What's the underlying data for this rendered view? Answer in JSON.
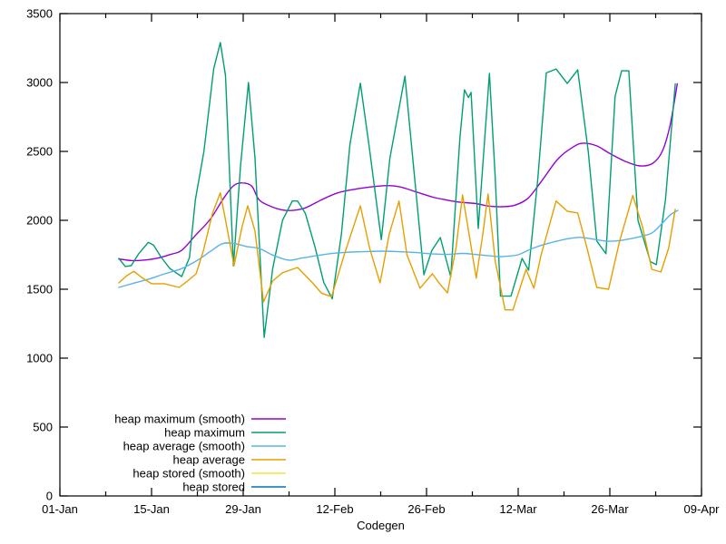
{
  "chart_data": {
    "type": "line",
    "title": "",
    "xlabel": "Codegen",
    "ylabel": "",
    "background": "#ffffff",
    "border_visible": true,
    "grid": false,
    "legend": {
      "position": "bottom-left-inside",
      "sample_side": "right"
    },
    "x_axis": {
      "unit": "days since 01-Jan",
      "range_days": [
        0,
        98
      ],
      "major_tick_days": [
        0,
        14,
        28,
        42,
        56,
        70,
        84,
        98
      ],
      "minor_tick_days": [
        7,
        21,
        35,
        49,
        63,
        77,
        91
      ],
      "tick_labels": [
        "01-Jan",
        "15-Jan",
        "29-Jan",
        "12-Feb",
        "26-Feb",
        "12-Mar",
        "26-Mar",
        "09-Apr"
      ]
    },
    "y_axis": {
      "range": [
        0,
        3500
      ],
      "ticks": [
        0,
        500,
        1000,
        1500,
        2000,
        2500,
        3000,
        3500
      ],
      "tick_labels": [
        "0",
        "500",
        "1000",
        "1500",
        "2000",
        "2500",
        "3000",
        "3500"
      ]
    },
    "series": [
      {
        "name": "heap maximum (smooth)",
        "color": "#9400d3",
        "smooth": true,
        "visible_in_plot": true,
        "points": [
          [
            9,
            1720
          ],
          [
            11,
            1708
          ],
          [
            13,
            1712
          ],
          [
            15,
            1726
          ],
          [
            17,
            1754
          ],
          [
            18.6,
            1782
          ],
          [
            20.7,
            1890
          ],
          [
            23,
            2010
          ],
          [
            25,
            2160
          ],
          [
            26.5,
            2250
          ],
          [
            27.8,
            2272
          ],
          [
            29.3,
            2248
          ],
          [
            30.4,
            2150
          ],
          [
            32,
            2105
          ],
          [
            34,
            2075
          ],
          [
            35.5,
            2072
          ],
          [
            37.5,
            2090
          ],
          [
            40,
            2150
          ],
          [
            42.5,
            2200
          ],
          [
            45,
            2225
          ],
          [
            47.5,
            2242
          ],
          [
            50,
            2252
          ],
          [
            52,
            2242
          ],
          [
            54.5,
            2205
          ],
          [
            57,
            2168
          ],
          [
            59,
            2148
          ],
          [
            61,
            2132
          ],
          [
            63.5,
            2122
          ],
          [
            65.5,
            2103
          ],
          [
            67.5,
            2099
          ],
          [
            69.5,
            2110
          ],
          [
            71.5,
            2160
          ],
          [
            73.5,
            2280
          ],
          [
            76.1,
            2447
          ],
          [
            78.5,
            2535
          ],
          [
            80,
            2560
          ],
          [
            82,
            2540
          ],
          [
            84,
            2485
          ],
          [
            86.5,
            2425
          ],
          [
            88.6,
            2395
          ],
          [
            90.5,
            2412
          ],
          [
            92,
            2500
          ],
          [
            93.2,
            2690
          ],
          [
            94.3,
            2990
          ]
        ]
      },
      {
        "name": "heap maximum",
        "color": "#009e73",
        "smooth": false,
        "visible_in_plot": true,
        "points": [
          [
            9,
            1724
          ],
          [
            10,
            1665
          ],
          [
            10.9,
            1671
          ],
          [
            12,
            1755
          ],
          [
            13.5,
            1840
          ],
          [
            14.3,
            1820
          ],
          [
            15.5,
            1730
          ],
          [
            16.8,
            1650
          ],
          [
            18.6,
            1592
          ],
          [
            19.8,
            1730
          ],
          [
            20.7,
            2150
          ],
          [
            22,
            2500
          ],
          [
            23.5,
            3100
          ],
          [
            24.5,
            3290
          ],
          [
            25.3,
            3050
          ],
          [
            26.5,
            1670
          ],
          [
            27.6,
            2400
          ],
          [
            28.8,
            3000
          ],
          [
            29.8,
            2450
          ],
          [
            31.2,
            1150
          ],
          [
            32.5,
            1650
          ],
          [
            34,
            2000
          ],
          [
            35.5,
            2140
          ],
          [
            36.3,
            2140
          ],
          [
            37.5,
            2050
          ],
          [
            39,
            1800
          ],
          [
            40.3,
            1550
          ],
          [
            41.6,
            1430
          ],
          [
            43,
            1900
          ],
          [
            44.3,
            2550
          ],
          [
            45.9,
            2995
          ],
          [
            47.2,
            2550
          ],
          [
            49.1,
            1860
          ],
          [
            50.4,
            2450
          ],
          [
            52.7,
            3046
          ],
          [
            53.8,
            2500
          ],
          [
            55.6,
            1605
          ],
          [
            56.8,
            1780
          ],
          [
            58.1,
            1875
          ],
          [
            59.7,
            1590
          ],
          [
            61.1,
            2600
          ],
          [
            61.8,
            2947
          ],
          [
            62.4,
            2890
          ],
          [
            62.8,
            2928
          ],
          [
            63.9,
            1941
          ],
          [
            65.6,
            3066
          ],
          [
            66.5,
            2300
          ],
          [
            67.3,
            1450
          ],
          [
            68.9,
            1450
          ],
          [
            70.6,
            1724
          ],
          [
            71.6,
            1638
          ],
          [
            73,
            2300
          ],
          [
            74.3,
            3070
          ],
          [
            75.8,
            3098
          ],
          [
            77.5,
            2993
          ],
          [
            79.1,
            3092
          ],
          [
            80.7,
            2500
          ],
          [
            82,
            1850
          ],
          [
            83.4,
            1757
          ],
          [
            84.8,
            2900
          ],
          [
            85.8,
            3085
          ],
          [
            86.9,
            3085
          ],
          [
            88.3,
            2000
          ],
          [
            90.2,
            1700
          ],
          [
            91.1,
            1678
          ],
          [
            92.5,
            2150
          ],
          [
            94,
            2990
          ]
        ]
      },
      {
        "name": "heap average (smooth)",
        "color": "#56b4e9",
        "smooth": true,
        "visible_in_plot": true,
        "points": [
          [
            9,
            1513
          ],
          [
            11,
            1540
          ],
          [
            13.7,
            1575
          ],
          [
            16,
            1612
          ],
          [
            18.6,
            1650
          ],
          [
            21,
            1710
          ],
          [
            23,
            1775
          ],
          [
            24.8,
            1830
          ],
          [
            26.5,
            1833
          ],
          [
            28.5,
            1810
          ],
          [
            30.5,
            1795
          ],
          [
            32.5,
            1748
          ],
          [
            34.9,
            1711
          ],
          [
            37,
            1726
          ],
          [
            39.5,
            1746
          ],
          [
            42,
            1762
          ],
          [
            44.5,
            1770
          ],
          [
            47,
            1774
          ],
          [
            49.5,
            1776
          ],
          [
            52,
            1772
          ],
          [
            54.5,
            1766
          ],
          [
            57,
            1756
          ],
          [
            59.5,
            1753
          ],
          [
            61.5,
            1760
          ],
          [
            63.5,
            1752
          ],
          [
            65.5,
            1743
          ],
          [
            67,
            1737
          ],
          [
            68.5,
            1741
          ],
          [
            70,
            1750
          ],
          [
            72,
            1793
          ],
          [
            74,
            1825
          ],
          [
            76,
            1850
          ],
          [
            78,
            1870
          ],
          [
            79.5,
            1876
          ],
          [
            81.5,
            1863
          ],
          [
            83.5,
            1849
          ],
          [
            85.5,
            1853
          ],
          [
            87.5,
            1870
          ],
          [
            89,
            1886
          ],
          [
            90.5,
            1910
          ],
          [
            92,
            1978
          ],
          [
            93.3,
            2042
          ],
          [
            94.4,
            2072
          ]
        ]
      },
      {
        "name": "heap average",
        "color": "#e69f00",
        "smooth": false,
        "visible_in_plot": true,
        "points": [
          [
            9,
            1546
          ],
          [
            10.2,
            1598
          ],
          [
            11.3,
            1630
          ],
          [
            12.5,
            1585
          ],
          [
            14,
            1540
          ],
          [
            16,
            1540
          ],
          [
            18.2,
            1513
          ],
          [
            19.5,
            1560
          ],
          [
            20.8,
            1612
          ],
          [
            21.9,
            1776
          ],
          [
            23.3,
            2050
          ],
          [
            24.5,
            2200
          ],
          [
            25.5,
            1950
          ],
          [
            26.6,
            1671
          ],
          [
            27.8,
            1950
          ],
          [
            28.7,
            2105
          ],
          [
            29.8,
            1921
          ],
          [
            31.1,
            1408
          ],
          [
            32.5,
            1560
          ],
          [
            34,
            1620
          ],
          [
            36.3,
            1658
          ],
          [
            38.5,
            1550
          ],
          [
            40,
            1470
          ],
          [
            41.5,
            1447
          ],
          [
            43.5,
            1760
          ],
          [
            45.9,
            2105
          ],
          [
            47.3,
            1800
          ],
          [
            48.9,
            1546
          ],
          [
            50.3,
            1900
          ],
          [
            51.8,
            2140
          ],
          [
            53,
            1750
          ],
          [
            55,
            1507
          ],
          [
            56.9,
            1612
          ],
          [
            58,
            1540
          ],
          [
            59.2,
            1474
          ],
          [
            60.5,
            1800
          ],
          [
            61.5,
            2184
          ],
          [
            62.5,
            1900
          ],
          [
            63.6,
            1580
          ],
          [
            64.6,
            1900
          ],
          [
            65.4,
            2191
          ],
          [
            66.5,
            1700
          ],
          [
            68,
            1350
          ],
          [
            69.2,
            1350
          ],
          [
            71.2,
            1645
          ],
          [
            72.4,
            1507
          ],
          [
            73.5,
            1750
          ],
          [
            75.8,
            2140
          ],
          [
            77.5,
            2066
          ],
          [
            79.1,
            2053
          ],
          [
            80.5,
            1800
          ],
          [
            82,
            1513
          ],
          [
            83.8,
            1500
          ],
          [
            85.5,
            1850
          ],
          [
            87.5,
            2180
          ],
          [
            89,
            1950
          ],
          [
            90.4,
            1645
          ],
          [
            91.8,
            1625
          ],
          [
            93,
            1800
          ],
          [
            94,
            2080
          ]
        ]
      },
      {
        "name": "heap stored (smooth)",
        "color": "#f0e442",
        "smooth": true,
        "visible_in_plot": false,
        "points": []
      },
      {
        "name": "heap stored",
        "color": "#0072b2",
        "smooth": false,
        "visible_in_plot": false,
        "points": []
      }
    ]
  }
}
